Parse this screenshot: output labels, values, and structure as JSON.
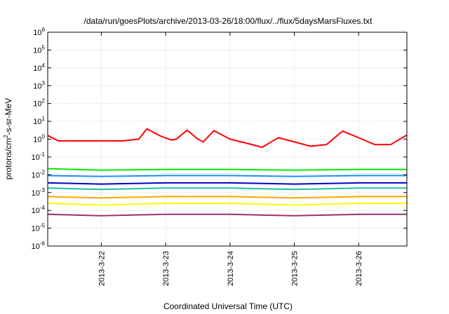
{
  "chart_data": {
    "type": "line",
    "title": "/data/run/goesPlots/archive/2013-03-26/18:00/flux/../flux/5daysMarsFluxes.txt",
    "xlabel": "Coordinated Universal Time (UTC)",
    "ylabel": {
      "base": "protons/cm",
      "sup": "2",
      "rest": "-s-sr-MeV"
    },
    "yscale": "log",
    "ylim": [
      1e-06,
      1000000.0
    ],
    "y_ticks": [
      {
        "value": 1e-06,
        "base": "10",
        "exp": "-6"
      },
      {
        "value": 1e-05,
        "base": "10",
        "exp": "-5"
      },
      {
        "value": 0.0001,
        "base": "10",
        "exp": "-4"
      },
      {
        "value": 0.001,
        "base": "10",
        "exp": "-3"
      },
      {
        "value": 0.01,
        "base": "10",
        "exp": "-2"
      },
      {
        "value": 0.1,
        "base": "10",
        "exp": "-1"
      },
      {
        "value": 1.0,
        "base": "10",
        "exp": "0"
      },
      {
        "value": 10.0,
        "base": "10",
        "exp": "1"
      },
      {
        "value": 100.0,
        "base": "10",
        "exp": "2"
      },
      {
        "value": 1000.0,
        "base": "10",
        "exp": "3"
      },
      {
        "value": 10000.0,
        "base": "10",
        "exp": "4"
      },
      {
        "value": 100000.0,
        "base": "10",
        "exp": "5"
      },
      {
        "value": 1000000.0,
        "base": "10",
        "exp": "6"
      }
    ],
    "xlim": [
      "2013-03-21T04:00",
      "2013-03-26T18:00"
    ],
    "x_ticks": [
      {
        "value": "2013-03-22T00:00",
        "label": "2013-3-22"
      },
      {
        "value": "2013-03-23T00:00",
        "label": "2013-3-23"
      },
      {
        "value": "2013-03-24T00:00",
        "label": "2013-3-24"
      },
      {
        "value": "2013-03-25T00:00",
        "label": "2013-3-25"
      },
      {
        "value": "2013-03-26T00:00",
        "label": "2013-3-26"
      }
    ],
    "grid": true,
    "series": [
      {
        "color": "#ff0000",
        "x": [
          "2013-03-21T04:00",
          "2013-03-21T08:00",
          "2013-03-22T00:00",
          "2013-03-22T08:00",
          "2013-03-22T14:00",
          "2013-03-22T17:00",
          "2013-03-22T22:00",
          "2013-03-23T02:00",
          "2013-03-23T04:00",
          "2013-03-23T08:00",
          "2013-03-23T12:00",
          "2013-03-23T14:00",
          "2013-03-23T18:00",
          "2013-03-24T00:00",
          "2013-03-24T06:00",
          "2013-03-24T12:00",
          "2013-03-24T18:00",
          "2013-03-25T00:00",
          "2013-03-25T06:00",
          "2013-03-25T12:00",
          "2013-03-25T18:00",
          "2013-03-26T00:00",
          "2013-03-26T06:00",
          "2013-03-26T12:00",
          "2013-03-26T18:00"
        ],
        "values": [
          1.6,
          0.8,
          0.8,
          0.8,
          1.0,
          3.8,
          1.5,
          0.9,
          1.0,
          3.2,
          1.0,
          0.7,
          3.0,
          1.0,
          0.6,
          0.35,
          1.2,
          0.7,
          0.4,
          0.5,
          2.8,
          1.2,
          0.5,
          0.5,
          1.7
        ]
      },
      {
        "color": "#00ee00",
        "x": [
          "2013-03-21T04:00",
          "2013-03-22T00:00",
          "2013-03-23T00:00",
          "2013-03-24T00:00",
          "2013-03-25T00:00",
          "2013-03-26T00:00",
          "2013-03-26T18:00"
        ],
        "values": [
          0.022,
          0.018,
          0.02,
          0.02,
          0.018,
          0.02,
          0.02
        ]
      },
      {
        "color": "#1e90ff",
        "x": [
          "2013-03-21T04:00",
          "2013-03-22T00:00",
          "2013-03-23T00:00",
          "2013-03-24T00:00",
          "2013-03-25T00:00",
          "2013-03-26T00:00",
          "2013-03-26T18:00"
        ],
        "values": [
          0.009,
          0.008,
          0.009,
          0.009,
          0.008,
          0.009,
          0.009
        ]
      },
      {
        "color": "#0000cc",
        "x": [
          "2013-03-21T04:00",
          "2013-03-22T00:00",
          "2013-03-23T00:00",
          "2013-03-24T00:00",
          "2013-03-25T00:00",
          "2013-03-26T00:00",
          "2013-03-26T18:00"
        ],
        "values": [
          0.0035,
          0.003,
          0.0035,
          0.0035,
          0.003,
          0.0035,
          0.0035
        ]
      },
      {
        "color": "#20c0a0",
        "x": [
          "2013-03-21T04:00",
          "2013-03-22T00:00",
          "2013-03-23T00:00",
          "2013-03-24T00:00",
          "2013-03-25T00:00",
          "2013-03-26T00:00",
          "2013-03-26T18:00"
        ],
        "values": [
          0.0018,
          0.0015,
          0.0018,
          0.0018,
          0.0015,
          0.0018,
          0.0018
        ]
      },
      {
        "color": "#ffa500",
        "x": [
          "2013-03-21T04:00",
          "2013-03-22T00:00",
          "2013-03-23T00:00",
          "2013-03-24T00:00",
          "2013-03-25T00:00",
          "2013-03-26T00:00",
          "2013-03-26T18:00"
        ],
        "values": [
          0.0006,
          0.0005,
          0.0006,
          0.0006,
          0.0005,
          0.0006,
          0.0006
        ]
      },
      {
        "color": "#ffff00",
        "x": [
          "2013-03-21T04:00",
          "2013-03-22T00:00",
          "2013-03-23T00:00",
          "2013-03-24T00:00",
          "2013-03-25T00:00",
          "2013-03-26T00:00",
          "2013-03-26T18:00"
        ],
        "values": [
          0.00025,
          0.0002,
          0.00025,
          0.00025,
          0.0002,
          0.00025,
          0.00025
        ]
      },
      {
        "color": "#993366",
        "x": [
          "2013-03-21T04:00",
          "2013-03-22T00:00",
          "2013-03-23T00:00",
          "2013-03-24T00:00",
          "2013-03-25T00:00",
          "2013-03-26T00:00",
          "2013-03-26T18:00"
        ],
        "values": [
          6e-05,
          5e-05,
          6e-05,
          6e-05,
          5e-05,
          6e-05,
          6e-05
        ]
      }
    ]
  }
}
